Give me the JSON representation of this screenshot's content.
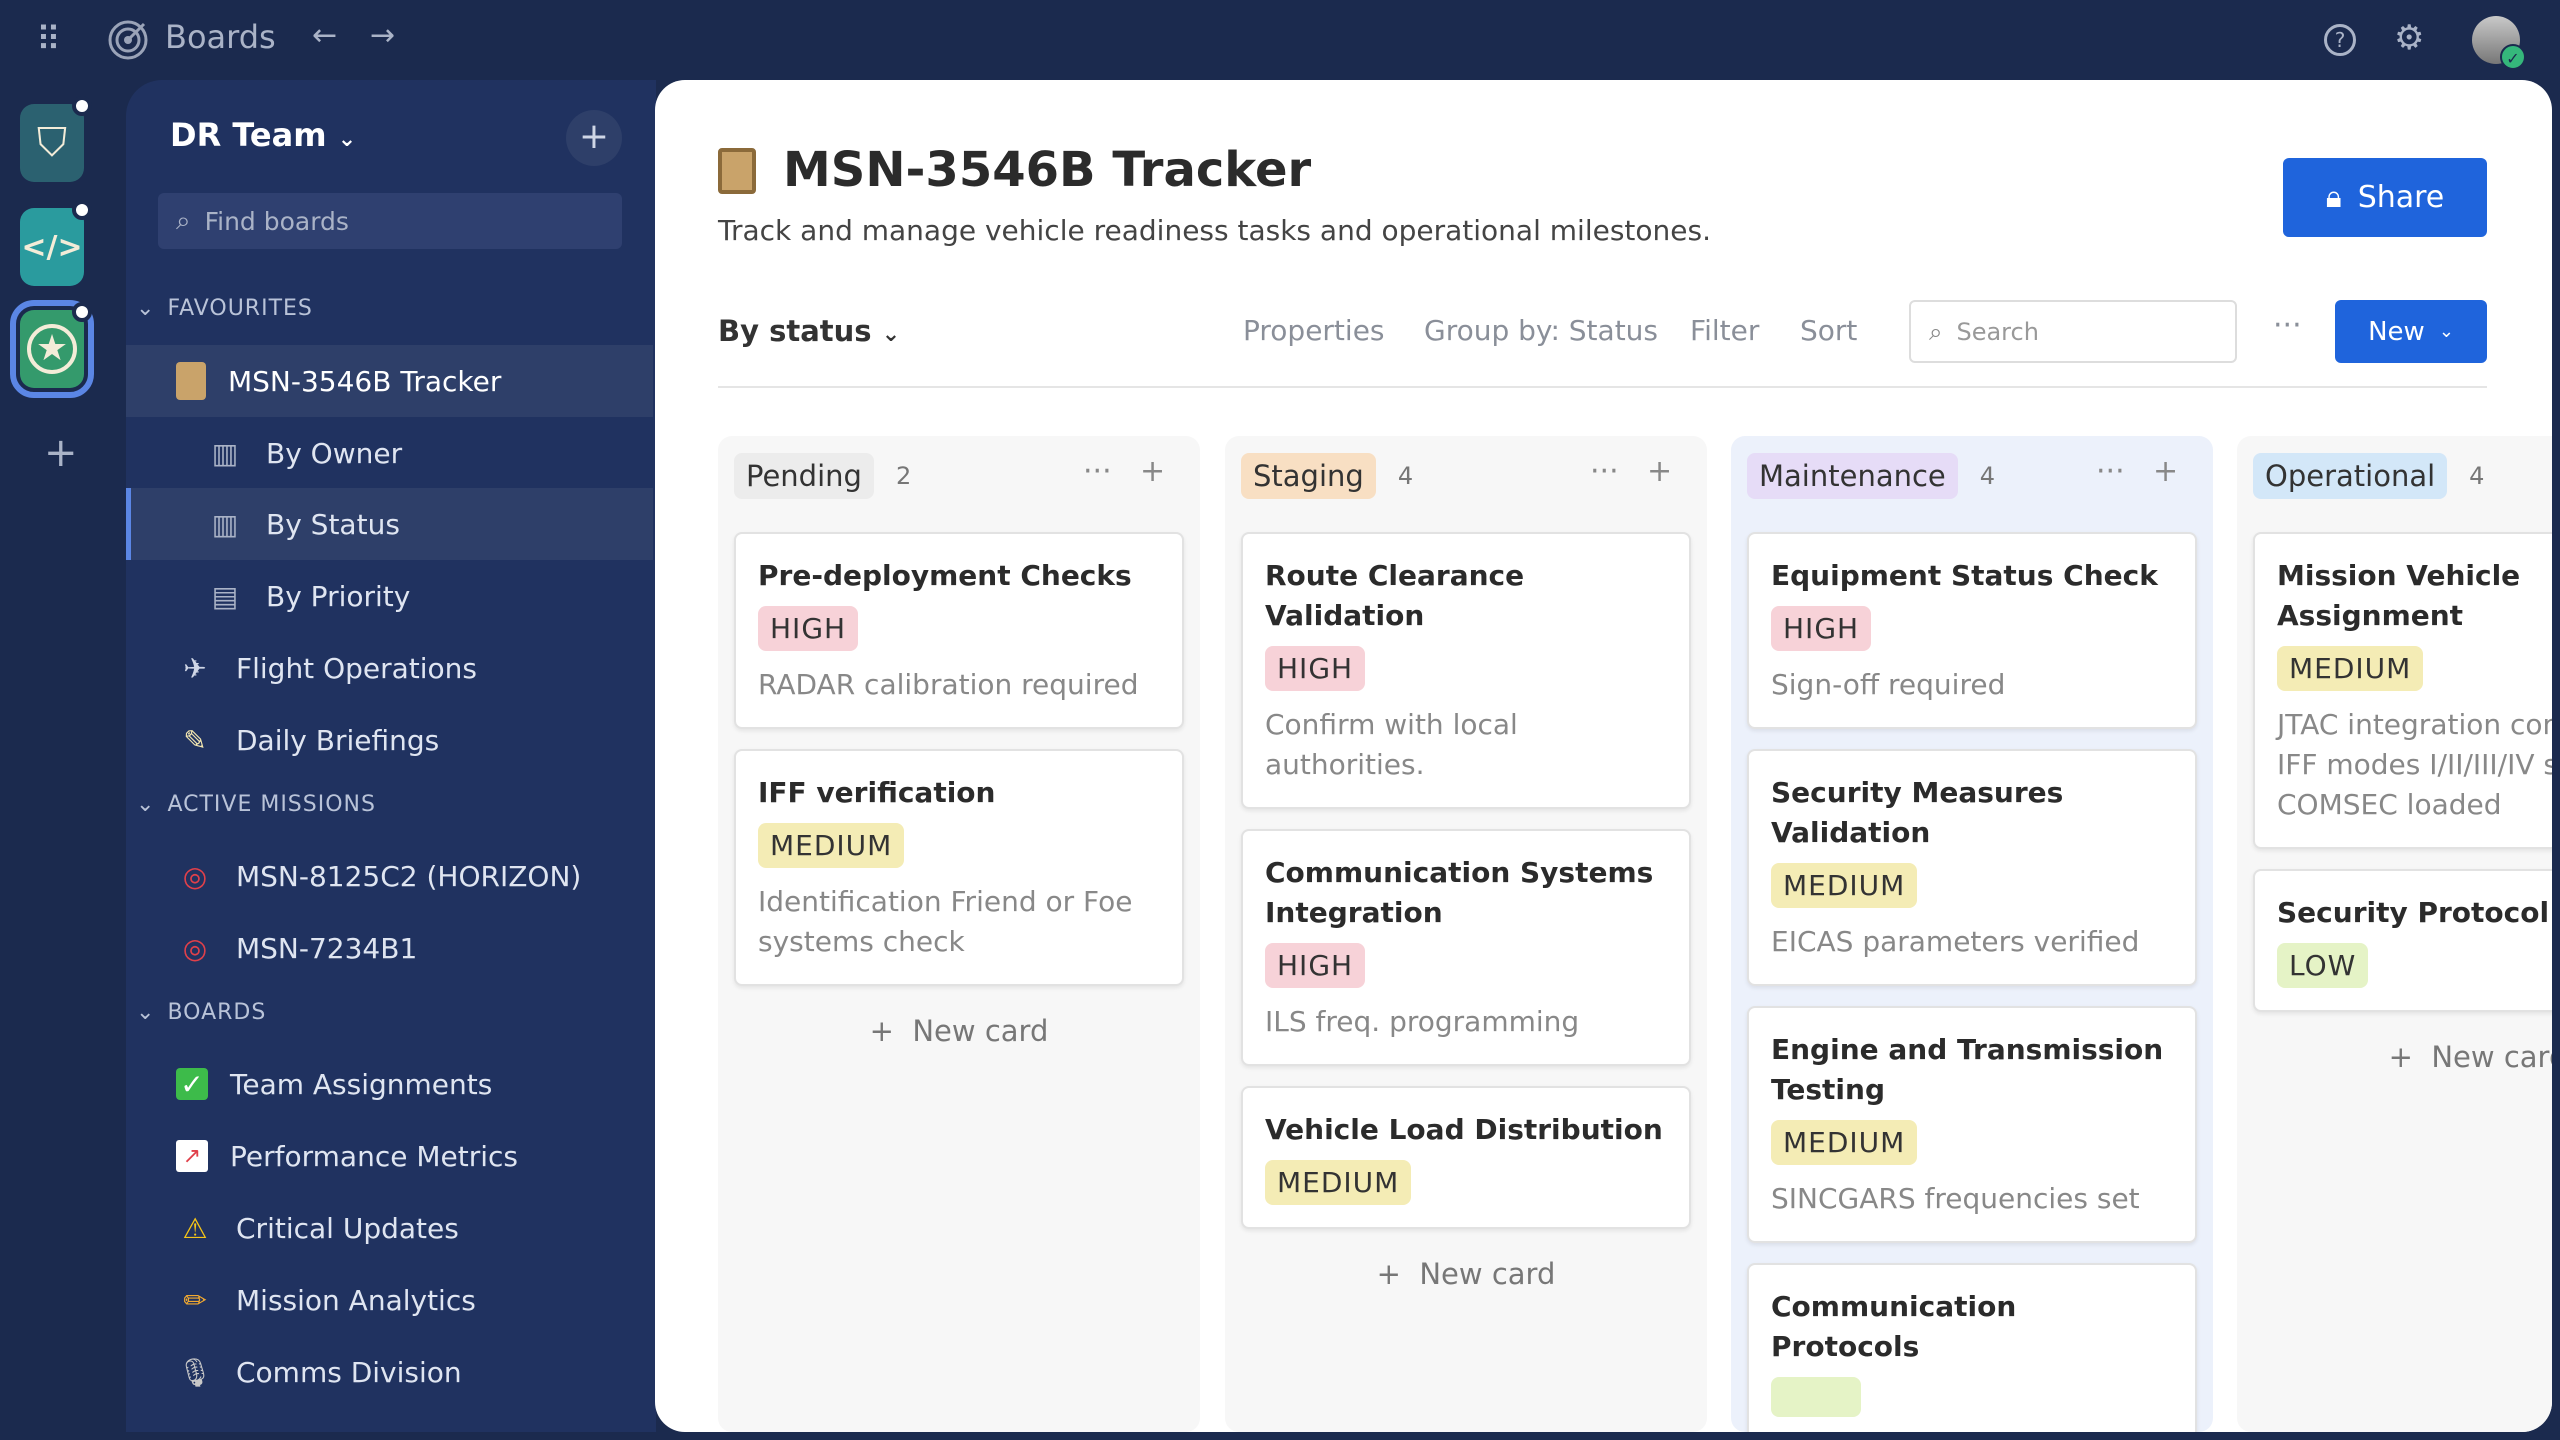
{
  "topbar": {
    "app_title": "Boards",
    "icons": [
      "apps-grid-icon",
      "target-logo-icon",
      "back-arrow-icon",
      "forward-arrow-icon",
      "help-icon",
      "settings-icon",
      "avatar"
    ]
  },
  "rail": {
    "apps": [
      {
        "icon": "shield-check-icon",
        "color": "#2b6170"
      },
      {
        "icon": "code-hexagon-icon",
        "color": "#2a9b9e"
      },
      {
        "icon": "star-circle-icon",
        "color": "#349a6c"
      }
    ],
    "add": "+"
  },
  "sidebar": {
    "team": "DR Team",
    "search_placeholder": "Find boards",
    "favourites_label": "FAVOURITES",
    "favourites": [
      {
        "label": "MSN-3546B Tracker",
        "icon": "clipboard-icon"
      },
      {
        "label": "By Owner",
        "icon": "board-icon"
      },
      {
        "label": "By Status",
        "icon": "board-icon"
      },
      {
        "label": "By Priority",
        "icon": "table-icon"
      },
      {
        "label": "Flight Operations",
        "icon": "airplane-icon"
      },
      {
        "label": "Daily Briefings",
        "icon": "memo-icon"
      }
    ],
    "missions_label": "ACTIVE MISSIONS",
    "missions": [
      {
        "label": "MSN-8125C2 (HORIZON)",
        "icon": "dart-icon"
      },
      {
        "label": "MSN-7234B1",
        "icon": "dart-icon"
      }
    ],
    "boards_label": "BOARDS",
    "boards": [
      {
        "label": "Team Assignments",
        "icon": "check-box-icon"
      },
      {
        "label": "Performance Metrics",
        "icon": "chart-up-icon"
      },
      {
        "label": "Critical Updates",
        "icon": "warning-icon"
      },
      {
        "label": "Mission Analytics",
        "icon": "pencil-icon"
      },
      {
        "label": "Comms Division",
        "icon": "microphone-icon"
      }
    ]
  },
  "main": {
    "title": "MSN-3546B Tracker",
    "subtitle": "Track and manage vehicle readiness tasks and operational milestones.",
    "share": "Share",
    "view": "By status",
    "properties": "Properties",
    "group_by": "Group by: Status",
    "filter": "Filter",
    "sort": "Sort",
    "search_placeholder": "Search",
    "more": "···",
    "new": "New",
    "new_card": "New card",
    "columns": [
      {
        "name": "Pending",
        "count": "2",
        "color": "#ececec",
        "cards": [
          {
            "title": "Pre-deployment Checks",
            "priority": "HIGH",
            "desc": "RADAR calibration required"
          },
          {
            "title": "IFF verification",
            "priority": "MEDIUM",
            "desc": "Identification Friend or Foe systems check"
          }
        ]
      },
      {
        "name": "Staging",
        "count": "4",
        "color": "#f8dfc3",
        "cards": [
          {
            "title": "Route Clearance Validation",
            "priority": "HIGH",
            "desc": "Confirm with local authorities."
          },
          {
            "title": "Communication Systems Integration",
            "priority": "HIGH",
            "desc": "ILS freq. programming"
          },
          {
            "title": "Vehicle Load Distribution",
            "priority": "MEDIUM",
            "desc": ""
          }
        ]
      },
      {
        "name": "Maintenance",
        "count": "4",
        "color": "#e6dcf7",
        "cards": [
          {
            "title": "Equipment Status Check",
            "priority": "HIGH",
            "desc": "Sign-off required"
          },
          {
            "title": "Security Measures Validation",
            "priority": "MEDIUM",
            "desc": "EICAS parameters verified"
          },
          {
            "title": "Engine and Transmission Testing",
            "priority": "MEDIUM",
            "desc": "SINCGARS frequencies set"
          },
          {
            "title": "Communication Protocols",
            "priority": "",
            "desc": ""
          }
        ]
      },
      {
        "name": "Operational",
        "count": "4",
        "color": "#d3e7f8",
        "cards": [
          {
            "title": "Mission Vehicle Assignment",
            "priority": "MEDIUM",
            "desc": "JTAC integration complete IFF modes I/II/III/IV set COMSEC loaded"
          },
          {
            "title": "Security Protocol Review",
            "priority": "LOW",
            "desc": ""
          }
        ]
      }
    ]
  }
}
